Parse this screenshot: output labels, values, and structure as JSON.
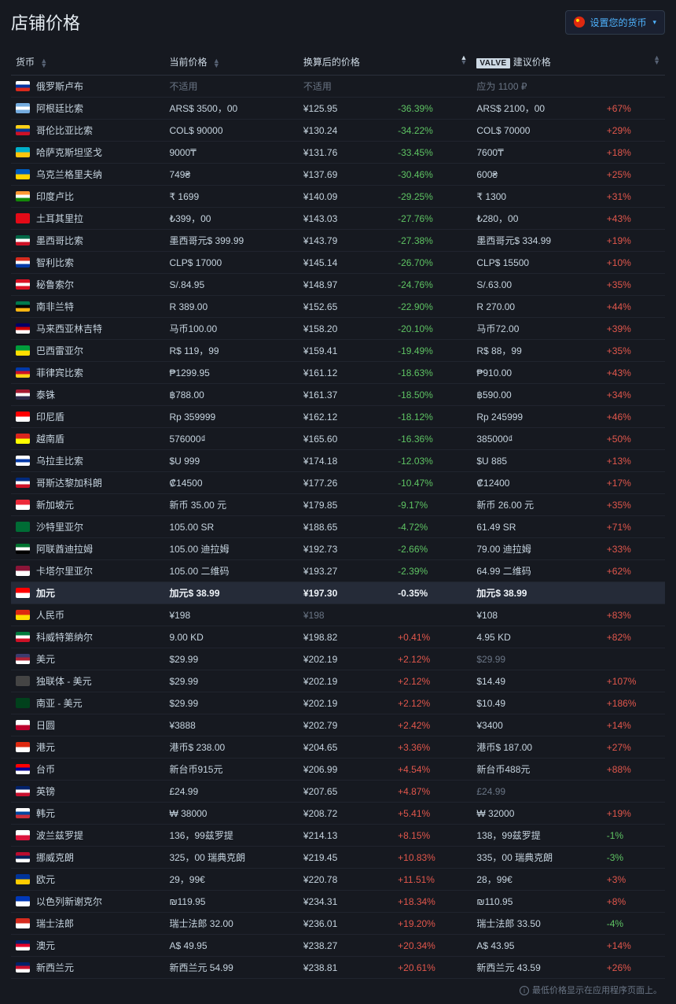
{
  "title": "店铺价格",
  "setCurrencyBtn": "设置您的货币",
  "columns": {
    "currency": "货币",
    "price": "当前价格",
    "converted": "换算后的价格",
    "valve": "建议价格",
    "valveLogo": "VALVE"
  },
  "footer": "最低价格显示在应用程序页面上。",
  "highlightIndex": 23,
  "rows": [
    {
      "flag": "#FFFFFF,#0033A0,#DA291C",
      "name": "俄罗斯卢布",
      "price": "不适用",
      "priceMuted": true,
      "conv": "不适用",
      "convMuted": true,
      "diff": "",
      "valve": "应为 1100 ₽",
      "valveMuted": true,
      "valveDiff": ""
    },
    {
      "flag": "#74ACDF,#FFFFFF,#74ACDF",
      "name": "阿根廷比索",
      "price": "ARS$ 3500，00",
      "conv": "¥125.95",
      "diff": "-36.39%",
      "diffClass": "green",
      "valve": "ARS$ 2100，00",
      "valveDiff": "+67%",
      "valveDiffClass": "red"
    },
    {
      "flag": "#FCD116,#003893,#CE1126",
      "name": "哥伦比亚比索",
      "price": "COL$ 90000",
      "conv": "¥130.24",
      "diff": "-34.22%",
      "diffClass": "green",
      "valve": "COL$ 70000",
      "valveDiff": "+29%",
      "valveDiffClass": "red"
    },
    {
      "flag": "#00AFCA,#FEC50C",
      "name": "哈萨克斯坦坚戈",
      "price": "9000₸",
      "conv": "¥131.76",
      "diff": "-33.45%",
      "diffClass": "green",
      "valve": "7600₸",
      "valveDiff": "+18%",
      "valveDiffClass": "red"
    },
    {
      "flag": "#005BBB,#FFD500",
      "name": "乌克兰格里夫纳",
      "price": "749₴",
      "conv": "¥137.69",
      "diff": "-30.46%",
      "diffClass": "green",
      "valve": "600₴",
      "valveDiff": "+25%",
      "valveDiffClass": "red"
    },
    {
      "flag": "#FF9933,#FFFFFF,#138808",
      "name": "印度卢比",
      "price": "₹ 1699",
      "conv": "¥140.09",
      "diff": "-29.25%",
      "diffClass": "green",
      "valve": "₹ 1300",
      "valveDiff": "+31%",
      "valveDiffClass": "red"
    },
    {
      "flag": "#E30A17",
      "name": "土耳其里拉",
      "price": "₺399，00",
      "conv": "¥143.03",
      "diff": "-27.76%",
      "diffClass": "green",
      "valve": "₺280，00",
      "valveDiff": "+43%",
      "valveDiffClass": "red"
    },
    {
      "flag": "#006847,#FFFFFF,#CE1126",
      "name": "墨西哥比索",
      "price": "墨西哥元$ 399.99",
      "conv": "¥143.79",
      "diff": "-27.38%",
      "diffClass": "green",
      "valve": "墨西哥元$ 334.99",
      "valveDiff": "+19%",
      "valveDiffClass": "red"
    },
    {
      "flag": "#D52B1E,#FFFFFF,#0039A6",
      "name": "智利比索",
      "price": "CLP$ 17000",
      "conv": "¥145.14",
      "diff": "-26.70%",
      "diffClass": "green",
      "valve": "CLP$ 15500",
      "valveDiff": "+10%",
      "valveDiffClass": "red"
    },
    {
      "flag": "#D91023,#FFFFFF,#D91023",
      "name": "秘鲁索尔",
      "price": "S/.84.95",
      "conv": "¥148.97",
      "diff": "-24.76%",
      "diffClass": "green",
      "valve": "S/.63.00",
      "valveDiff": "+35%",
      "valveDiffClass": "red"
    },
    {
      "flag": "#007A4D,#000000,#FFB612",
      "name": "南非兰特",
      "price": "R 389.00",
      "conv": "¥152.65",
      "diff": "-22.90%",
      "diffClass": "green",
      "valve": "R 270.00",
      "valveDiff": "+44%",
      "valveDiffClass": "red"
    },
    {
      "flag": "#010066,#CC0001,#FFFFFF",
      "name": "马来西亚林吉特",
      "price": "马币100.00",
      "conv": "¥158.20",
      "diff": "-20.10%",
      "diffClass": "green",
      "valve": "马币72.00",
      "valveDiff": "+39%",
      "valveDiffClass": "red"
    },
    {
      "flag": "#009C3B,#FFDF00",
      "name": "巴西雷亚尔",
      "price": "R$ 119，99",
      "conv": "¥159.41",
      "diff": "-19.49%",
      "diffClass": "green",
      "valve": "R$ 88，99",
      "valveDiff": "+35%",
      "valveDiffClass": "red"
    },
    {
      "flag": "#0038A8,#CE1126,#FCD116",
      "name": "菲律宾比索",
      "price": "₱1299.95",
      "conv": "¥161.12",
      "diff": "-18.63%",
      "diffClass": "green",
      "valve": "₱910.00",
      "valveDiff": "+43%",
      "valveDiffClass": "red"
    },
    {
      "flag": "#A51931,#FFFFFF,#2D2A4A",
      "name": "泰铢",
      "price": "฿788.00",
      "conv": "¥161.37",
      "diff": "-18.50%",
      "diffClass": "green",
      "valve": "฿590.00",
      "valveDiff": "+34%",
      "valveDiffClass": "red"
    },
    {
      "flag": "#FF0000,#FFFFFF",
      "name": "印尼盾",
      "price": "Rp 359999",
      "conv": "¥162.12",
      "diff": "-18.12%",
      "diffClass": "green",
      "valve": "Rp 245999",
      "valveDiff": "+46%",
      "valveDiffClass": "red"
    },
    {
      "flag": "#DA251D,#FFFF00",
      "name": "越南盾",
      "price": "576000₫",
      "conv": "¥165.60",
      "diff": "-16.36%",
      "diffClass": "green",
      "valve": "385000₫",
      "valveDiff": "+50%",
      "valveDiffClass": "red"
    },
    {
      "flag": "#FFFFFF,#0038A8,#FFFFFF",
      "name": "乌拉圭比索",
      "price": "$U 999",
      "conv": "¥174.18",
      "diff": "-12.03%",
      "diffClass": "green",
      "valve": "$U 885",
      "valveDiff": "+13%",
      "valveDiffClass": "red"
    },
    {
      "flag": "#002B7F,#FFFFFF,#CE1126",
      "name": "哥斯达黎加科朗",
      "price": "₡14500",
      "conv": "¥177.26",
      "diff": "-10.47%",
      "diffClass": "green",
      "valve": "₡12400",
      "valveDiff": "+17%",
      "valveDiffClass": "red"
    },
    {
      "flag": "#ED2939,#FFFFFF",
      "name": "新加坡元",
      "price": "新币 35.00 元",
      "conv": "¥179.85",
      "diff": "-9.17%",
      "diffClass": "green",
      "valve": "新币 26.00 元",
      "valveDiff": "+35%",
      "valveDiffClass": "red"
    },
    {
      "flag": "#006C35",
      "name": "沙特里亚尔",
      "price": "105.00 SR",
      "conv": "¥188.65",
      "diff": "-4.72%",
      "diffClass": "green",
      "valve": "61.49 SR",
      "valveDiff": "+71%",
      "valveDiffClass": "red"
    },
    {
      "flag": "#00732F,#FFFFFF,#000000",
      "name": "阿联酋迪拉姆",
      "price": "105.00 迪拉姆",
      "conv": "¥192.73",
      "diff": "-2.66%",
      "diffClass": "green",
      "valve": "79.00 迪拉姆",
      "valveDiff": "+33%",
      "valveDiffClass": "red"
    },
    {
      "flag": "#8A1538,#FFFFFF",
      "name": "卡塔尔里亚尔",
      "price": "105.00 二维码",
      "conv": "¥193.27",
      "diff": "-2.39%",
      "diffClass": "green",
      "valve": "64.99 二维码",
      "valveDiff": "+62%",
      "valveDiffClass": "red"
    },
    {
      "flag": "#FF0000,#FFFFFF",
      "name": "加元",
      "price": "加元$ 38.99",
      "conv": "¥197.30",
      "diff": "-0.35%",
      "diffClass": "green",
      "valve": "加元$ 38.99",
      "valveMuted": true,
      "valveDiff": ""
    },
    {
      "flag": "#DE2910,#FFDE00",
      "name": "人民币",
      "price": "¥198",
      "conv": "¥198",
      "convMuted": true,
      "diff": "",
      "valve": "¥108",
      "valveDiff": "+83%",
      "valveDiffClass": "red"
    },
    {
      "flag": "#007A3D,#FFFFFF,#CE1126",
      "name": "科威特第纳尔",
      "price": "9.00 KD",
      "conv": "¥198.82",
      "diff": "+0.41%",
      "diffClass": "red",
      "valve": "4.95 KD",
      "valveDiff": "+82%",
      "valveDiffClass": "red"
    },
    {
      "flag": "#3C3B6E,#B22234,#FFFFFF",
      "name": "美元",
      "price": "$29.99",
      "conv": "¥202.19",
      "diff": "+2.12%",
      "diffClass": "red",
      "valve": "$29.99",
      "valveMuted": true,
      "valveDiff": ""
    },
    {
      "flag": "#444444",
      "name": "独联体 - 美元",
      "price": "$29.99",
      "conv": "¥202.19",
      "diff": "+2.12%",
      "diffClass": "red",
      "valve": "$14.49",
      "valveDiff": "+107%",
      "valveDiffClass": "red"
    },
    {
      "flag": "#01411C",
      "name": "南亚 - 美元",
      "price": "$29.99",
      "conv": "¥202.19",
      "diff": "+2.12%",
      "diffClass": "red",
      "valve": "$10.49",
      "valveDiff": "+186%",
      "valveDiffClass": "red"
    },
    {
      "flag": "#FFFFFF,#BC002D",
      "name": "日圆",
      "price": "¥3888",
      "conv": "¥202.79",
      "diff": "+2.42%",
      "diffClass": "red",
      "valve": "¥3400",
      "valveDiff": "+14%",
      "valveDiffClass": "red"
    },
    {
      "flag": "#DE2910,#FFFFFF",
      "name": "港元",
      "price": "港币$ 238.00",
      "conv": "¥204.65",
      "diff": "+3.36%",
      "diffClass": "red",
      "valve": "港币$ 187.00",
      "valveDiff": "+27%",
      "valveDiffClass": "red"
    },
    {
      "flag": "#FE0000,#000095,#FFFFFF",
      "name": "台币",
      "price": "新台币915元",
      "conv": "¥206.99",
      "diff": "+4.54%",
      "diffClass": "red",
      "valve": "新台币488元",
      "valveDiff": "+88%",
      "valveDiffClass": "red"
    },
    {
      "flag": "#012169,#FFFFFF,#C8102E",
      "name": "英镑",
      "price": "£24.99",
      "conv": "¥207.65",
      "diff": "+4.87%",
      "diffClass": "red",
      "valve": "£24.99",
      "valveMuted": true,
      "valveDiff": ""
    },
    {
      "flag": "#FFFFFF,#0047A0,#CD2E3A",
      "name": "韩元",
      "price": "₩ 38000",
      "conv": "¥208.72",
      "diff": "+5.41%",
      "diffClass": "red",
      "valve": "₩ 32000",
      "valveDiff": "+19%",
      "valveDiffClass": "red"
    },
    {
      "flag": "#FFFFFF,#DC143C",
      "name": "波兰兹罗提",
      "price": "136，99兹罗提",
      "conv": "¥214.13",
      "diff": "+8.15%",
      "diffClass": "red",
      "valve": "138，99兹罗提",
      "valveDiff": "-1%",
      "valveDiffClass": "green"
    },
    {
      "flag": "#BA0C2F,#00205B,#FFFFFF",
      "name": "挪威克朗",
      "price": "325，00 瑞典克朗",
      "conv": "¥219.45",
      "diff": "+10.83%",
      "diffClass": "red",
      "valve": "335，00 瑞典克朗",
      "valveDiff": "-3%",
      "valveDiffClass": "green"
    },
    {
      "flag": "#003399,#FFCC00",
      "name": "欧元",
      "price": "29，99€",
      "conv": "¥220.78",
      "diff": "+11.51%",
      "diffClass": "red",
      "valve": "28，99€",
      "valveDiff": "+3%",
      "valveDiffClass": "red"
    },
    {
      "flag": "#0038B8,#FFFFFF",
      "name": "以色列新谢克尔",
      "price": "₪119.95",
      "conv": "¥234.31",
      "diff": "+18.34%",
      "diffClass": "red",
      "valve": "₪110.95",
      "valveDiff": "+8%",
      "valveDiffClass": "red"
    },
    {
      "flag": "#D52B1E,#FFFFFF",
      "name": "瑞士法郎",
      "price": "瑞士法郎 32.00",
      "conv": "¥236.01",
      "diff": "+19.20%",
      "diffClass": "red",
      "valve": "瑞士法郎 33.50",
      "valveDiff": "-4%",
      "valveDiffClass": "green"
    },
    {
      "flag": "#012169,#E4002B,#FFFFFF",
      "name": "澳元",
      "price": "A$ 49.95",
      "conv": "¥238.27",
      "diff": "+20.34%",
      "diffClass": "red",
      "valve": "A$ 43.95",
      "valveDiff": "+14%",
      "valveDiffClass": "red"
    },
    {
      "flag": "#012169,#C8102E,#FFFFFF",
      "name": "新西兰元",
      "price": "新西兰元 54.99",
      "conv": "¥238.81",
      "diff": "+20.61%",
      "diffClass": "red",
      "valve": "新西兰元 43.59",
      "valveDiff": "+26%",
      "valveDiffClass": "red"
    }
  ]
}
